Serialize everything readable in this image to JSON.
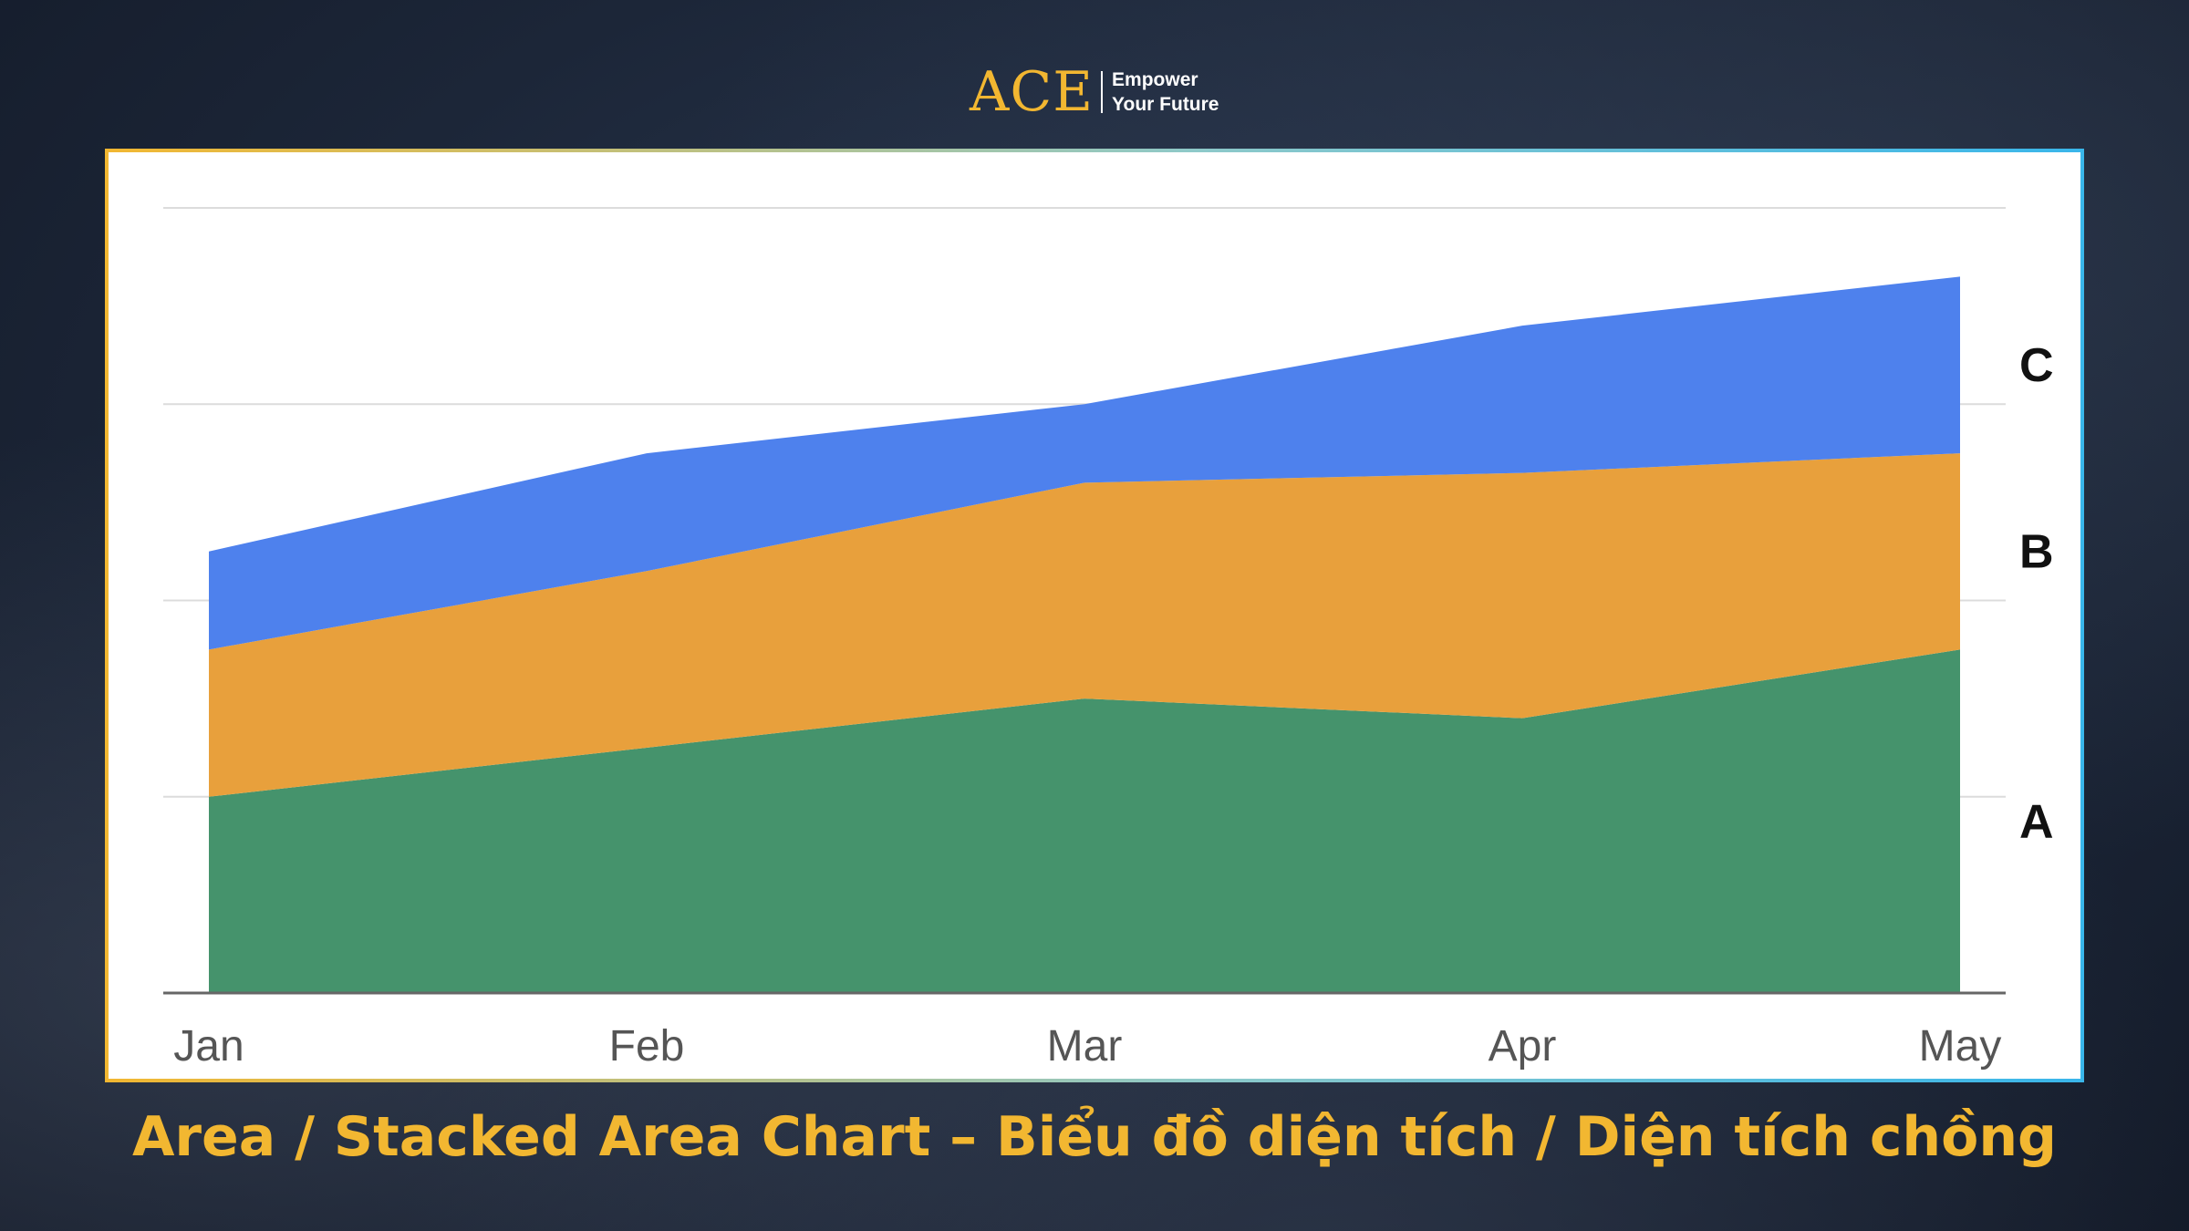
{
  "logo": {
    "mark": "ACE",
    "tagline_line1": "Empower",
    "tagline_line2": "Your Future"
  },
  "caption": "Area / Stacked Area Chart – Biểu đồ diện tích / Diện tích chồng",
  "chart_data": {
    "type": "area",
    "stacked": true,
    "categories": [
      "Jan",
      "Feb",
      "Mar",
      "Apr",
      "May"
    ],
    "series": [
      {
        "name": "A",
        "color": "#45936c",
        "values": [
          2.0,
          2.5,
          3.0,
          2.8,
          3.5
        ]
      },
      {
        "name": "B",
        "color": "#e8a03c",
        "values": [
          1.5,
          1.8,
          2.2,
          2.5,
          2.0
        ]
      },
      {
        "name": "C",
        "color": "#4e81ed",
        "values": [
          1.0,
          1.2,
          0.8,
          1.5,
          1.8
        ]
      }
    ],
    "ylim": [
      0,
      8
    ],
    "y_gridlines": [
      2,
      4,
      6,
      8
    ],
    "y_tick_labels_shown": false,
    "grid": true,
    "legend": "right-inline labels"
  }
}
